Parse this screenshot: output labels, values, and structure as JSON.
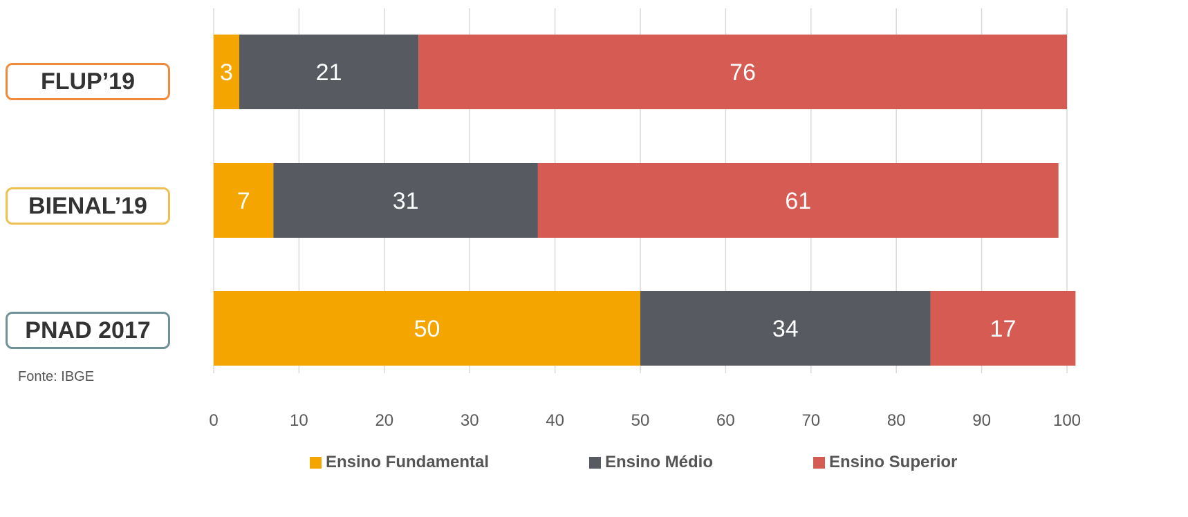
{
  "chart_data": {
    "type": "bar",
    "orientation": "horizontal",
    "stacked": true,
    "categories": [
      "FLUP’19",
      "BIENAL’19",
      "PNAD 2017"
    ],
    "category_colors": [
      "#f08a3c",
      "#eec050",
      "#6e9298"
    ],
    "series": [
      {
        "name": "Ensino Fundamental",
        "color": "#f5a500",
        "values": [
          3,
          7,
          50
        ]
      },
      {
        "name": "Ensino Médio",
        "color": "#575a61",
        "values": [
          21,
          31,
          34
        ]
      },
      {
        "name": "Ensino Superior",
        "color": "#d55b53",
        "values": [
          76,
          61,
          17
        ]
      }
    ],
    "xlim": [
      0,
      100
    ],
    "xticks": [
      0,
      10,
      20,
      30,
      40,
      50,
      60,
      70,
      80,
      90,
      100
    ],
    "grid": "vertical",
    "legend_position": "bottom",
    "source_note": "Fonte: IBGE"
  }
}
